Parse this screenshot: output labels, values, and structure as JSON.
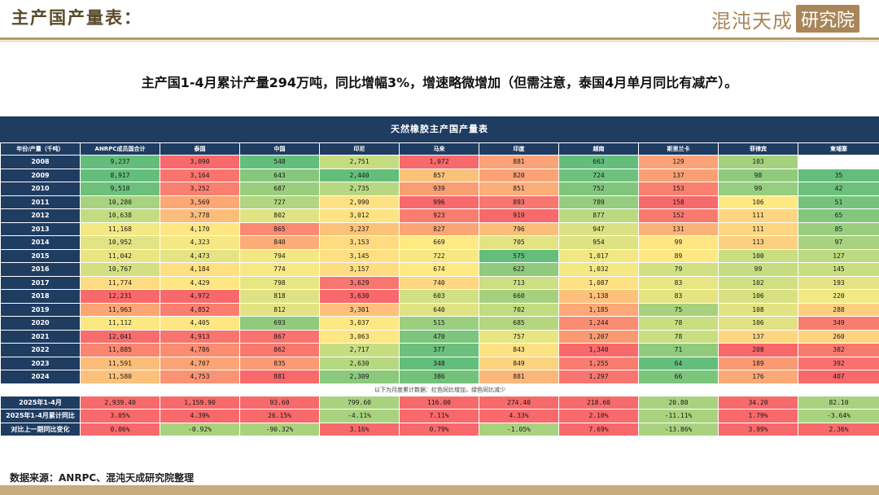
{
  "header": {
    "title": "主产国产量表：",
    "logo_text": "混沌天成",
    "logo_box": "研究院"
  },
  "subtitle": "主产国1-4月累计产量294万吨，同比增幅3%，增速略微增加（但需注意，泰国4月单月同比有减产）。",
  "table": {
    "caption": "天然橡胶主产国产量表",
    "columns": [
      "年份/产量（千吨）",
      "ANRPC成员国合计",
      "泰国",
      "中国",
      "印尼",
      "马来",
      "印度",
      "越南",
      "斯里兰卡",
      "菲律宾",
      "柬埔寨"
    ],
    "rows": [
      {
        "label": "2008",
        "cells": [
          "9,237",
          "3,090",
          "548",
          "2,751",
          "1,072",
          "881",
          "663",
          "129",
          "103",
          ""
        ]
      },
      {
        "label": "2009",
        "cells": [
          "8,917",
          "3,164",
          "643",
          "2,440",
          "857",
          "820",
          "724",
          "137",
          "98",
          "35"
        ]
      },
      {
        "label": "2010",
        "cells": [
          "9,510",
          "3,252",
          "687",
          "2,735",
          "939",
          "851",
          "752",
          "153",
          "99",
          "42"
        ]
      },
      {
        "label": "2011",
        "cells": [
          "10,280",
          "3,569",
          "727",
          "2,990",
          "996",
          "893",
          "789",
          "158",
          "106",
          "51"
        ]
      },
      {
        "label": "2012",
        "cells": [
          "10,638",
          "3,778",
          "802",
          "3,012",
          "923",
          "919",
          "877",
          "152",
          "111",
          "65"
        ]
      },
      {
        "label": "2013",
        "cells": [
          "11,168",
          "4,170",
          "865",
          "3,237",
          "827",
          "796",
          "947",
          "131",
          "111",
          "85"
        ]
      },
      {
        "label": "2014",
        "cells": [
          "10,952",
          "4,323",
          "840",
          "3,153",
          "669",
          "705",
          "954",
          "99",
          "113",
          "97"
        ]
      },
      {
        "label": "2015",
        "cells": [
          "11,042",
          "4,473",
          "794",
          "3,145",
          "722",
          "575",
          "1,017",
          "89",
          "100",
          "127"
        ]
      },
      {
        "label": "2016",
        "cells": [
          "10,767",
          "4,184",
          "774",
          "3,157",
          "674",
          "622",
          "1,032",
          "79",
          "99",
          "145"
        ]
      },
      {
        "label": "2017",
        "cells": [
          "11,774",
          "4,429",
          "798",
          "3,629",
          "740",
          "713",
          "1,087",
          "83",
          "102",
          "193"
        ]
      },
      {
        "label": "2018",
        "cells": [
          "12,231",
          "4,972",
          "818",
          "3,630",
          "603",
          "660",
          "1,138",
          "83",
          "106",
          "220"
        ]
      },
      {
        "label": "2019",
        "cells": [
          "11,963",
          "4,852",
          "812",
          "3,301",
          "640",
          "702",
          "1,185",
          "75",
          "108",
          "288"
        ]
      },
      {
        "label": "2020",
        "cells": [
          "11,112",
          "4,405",
          "693",
          "3,037",
          "515",
          "685",
          "1,244",
          "78",
          "106",
          "349"
        ]
      },
      {
        "label": "2021",
        "cells": [
          "12,041",
          "4,913",
          "867",
          "3,063",
          "470",
          "757",
          "1,207",
          "78",
          "137",
          "260"
        ]
      },
      {
        "label": "2022",
        "cells": [
          "11,885",
          "4,786",
          "862",
          "2,717",
          "377",
          "843",
          "1,340",
          "71",
          "208",
          "382"
        ]
      },
      {
        "label": "2023",
        "cells": [
          "11,591",
          "4,707",
          "835",
          "2,630",
          "348",
          "849",
          "1,255",
          "64",
          "189",
          "392"
        ]
      },
      {
        "label": "2024",
        "cells": [
          "11,580",
          "4,753",
          "881",
          "2,309",
          "386",
          "881",
          "1,297",
          "66",
          "176",
          "407"
        ]
      }
    ],
    "row_colors": [
      [
        "#63be7b",
        "#f8696b",
        "#63be7b",
        "#c5dc80",
        "#f8696b",
        "#fba276",
        "#63be7b",
        "#fba276",
        "#a5d17e",
        "#ffffff"
      ],
      [
        "#63be7b",
        "#f9746d",
        "#86c77d",
        "#63be7b",
        "#f8c27a",
        "#fba276",
        "#6ec17c",
        "#f8a074",
        "#8fca7d",
        "#63be7b"
      ],
      [
        "#6cc07b",
        "#f97f6f",
        "#99ce7f",
        "#b7d880",
        "#f99e72",
        "#fbae78",
        "#7fc57c",
        "#f97f6f",
        "#96cd7e",
        "#6cc07b"
      ],
      [
        "#a7d27f",
        "#fba875",
        "#b1d580",
        "#fde182",
        "#f8696b",
        "#f87670",
        "#95cc7e",
        "#f8696b",
        "#fee983",
        "#75c37c"
      ],
      [
        "#c4dc81",
        "#fbbd79",
        "#e1e383",
        "#fee382",
        "#f97d6f",
        "#f8696b",
        "#bbd980",
        "#f87a6f",
        "#fed580",
        "#82c77d"
      ],
      [
        "#f3e883",
        "#fee683",
        "#f98970",
        "#fbc279",
        "#fba576",
        "#fbbe7a",
        "#dbe182",
        "#fbb276",
        "#fed580",
        "#99ce7f"
      ],
      [
        "#e2e383",
        "#f5e884",
        "#fbac77",
        "#feda81",
        "#fee983",
        "#e3e383",
        "#dee283",
        "#fee683",
        "#fdd07f",
        "#a8d27f"
      ],
      [
        "#eae583",
        "#e5e383",
        "#f1e784",
        "#fedf81",
        "#f7e883",
        "#63be7b",
        "#f1e784",
        "#fee883",
        "#c9de81",
        "#bcda81"
      ],
      [
        "#d4df82",
        "#fedf81",
        "#f8e884",
        "#fedd81",
        "#fee983",
        "#8fca7d",
        "#f3e884",
        "#d0e082",
        "#c5dc80",
        "#c8de81"
      ],
      [
        "#fddc81",
        "#fee683",
        "#eae583",
        "#f87670",
        "#fed880",
        "#ccdf82",
        "#fee182",
        "#e8e583",
        "#d0e082",
        "#e5e383"
      ],
      [
        "#f8696b",
        "#f8696b",
        "#dfe283",
        "#f8696b",
        "#d0e082",
        "#a5d17e",
        "#fec17c",
        "#e5e483",
        "#d7e182",
        "#f2e884"
      ],
      [
        "#fba574",
        "#f97e6f",
        "#e3e383",
        "#fec07c",
        "#e0e383",
        "#c2dc81",
        "#fca977",
        "#a8d17e",
        "#e4e383",
        "#fcd07f"
      ],
      [
        "#fce882",
        "#fee683",
        "#8fca7d",
        "#fee883",
        "#9acf7f",
        "#b3d680",
        "#fa8c71",
        "#c9de81",
        "#e0e283",
        "#f97d6f"
      ],
      [
        "#f86c6c",
        "#f9746d",
        "#f8726e",
        "#fee683",
        "#7dc57c",
        "#e8e583",
        "#fa9a73",
        "#c9de81",
        "#fdd680",
        "#fed380"
      ],
      [
        "#fa8671",
        "#fa8c71",
        "#f8786e",
        "#c6dd81",
        "#6cc07b",
        "#fde182",
        "#f8696b",
        "#90cb7d",
        "#f8696b",
        "#f87a6f"
      ],
      [
        "#fbbe7a",
        "#fba476",
        "#fa9b73",
        "#b6d880",
        "#63be7b",
        "#fcd47f",
        "#f97d6f",
        "#63be7b",
        "#fa9a73",
        "#f8716e"
      ],
      [
        "#fbc17a",
        "#fa9373",
        "#f8696b",
        "#8bc97d",
        "#73c27b",
        "#fbb77a",
        "#f87570",
        "#7ac47c",
        "#fca977",
        "#f8696b"
      ]
    ],
    "note": "以下为月度累计数据：红色同比增加，绿色同比减少",
    "summary_rows": [
      {
        "label": "2025年1-4月",
        "cells": [
          "2,939.40",
          "1,159.90",
          "93.60",
          "799.60",
          "116.00",
          "274.40",
          "218.60",
          "20.80",
          "34.20",
          "82.10"
        ],
        "colors": [
          "#f8696b",
          "#f8696b",
          "#f8696b",
          "#a9d27f",
          "#f8696b",
          "#f8696b",
          "#f8696b",
          "#a9d27f",
          "#f8696b",
          "#a9d27f"
        ]
      },
      {
        "label": "2025年1-4月累计同比",
        "cells": [
          "3.05%",
          "4.39%",
          "26.15%",
          "-4.11%",
          "7.11%",
          "4.33%",
          "2.10%",
          "-11.11%",
          "1.79%",
          "-3.64%"
        ],
        "colors": [
          "#f8696b",
          "#f8696b",
          "#f8696b",
          "#a9d27f",
          "#f8696b",
          "#f8696b",
          "#f8696b",
          "#a9d27f",
          "#f8696b",
          "#a9d27f"
        ]
      },
      {
        "label": "对比上一期同比变化",
        "cells": [
          "0.06%",
          "-0.92%",
          "-90.32%",
          "3.16%",
          "0.79%",
          "-1.05%",
          "7.69%",
          "-13.86%",
          "3.99%",
          "2.36%"
        ],
        "colors": [
          "#f8696b",
          "#a9d27f",
          "#a9d27f",
          "#f8696b",
          "#f8696b",
          "#a9d27f",
          "#f8696b",
          "#a9d27f",
          "#f8696b",
          "#f8696b"
        ]
      }
    ]
  },
  "source": "数据来源：ANRPC、混沌天成研究院整理"
}
